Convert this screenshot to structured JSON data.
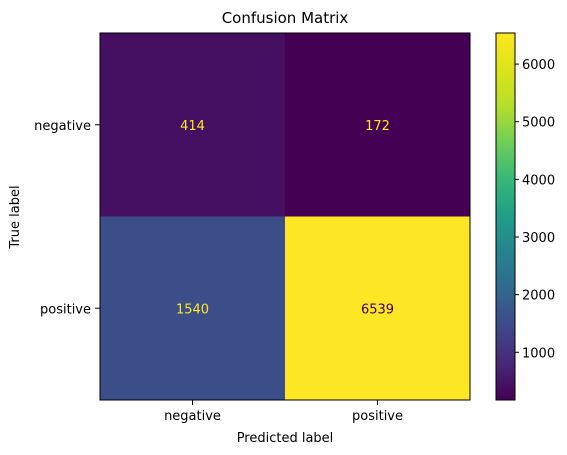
{
  "chart_data": {
    "type": "heatmap",
    "title": "Confusion Matrix",
    "xlabel": "Predicted label",
    "ylabel": "True label",
    "x_categories": [
      "negative",
      "positive"
    ],
    "y_categories": [
      "negative",
      "positive"
    ],
    "values": [
      [
        414,
        172
      ],
      [
        1540,
        6539
      ]
    ],
    "colormap": "viridis",
    "colorbar": {
      "min": 172,
      "max": 6539,
      "ticks": [
        1000,
        2000,
        3000,
        4000,
        5000,
        6000
      ]
    },
    "grid": false,
    "colors": {
      "low_text": "#fde725",
      "high_text": "#440154"
    }
  }
}
